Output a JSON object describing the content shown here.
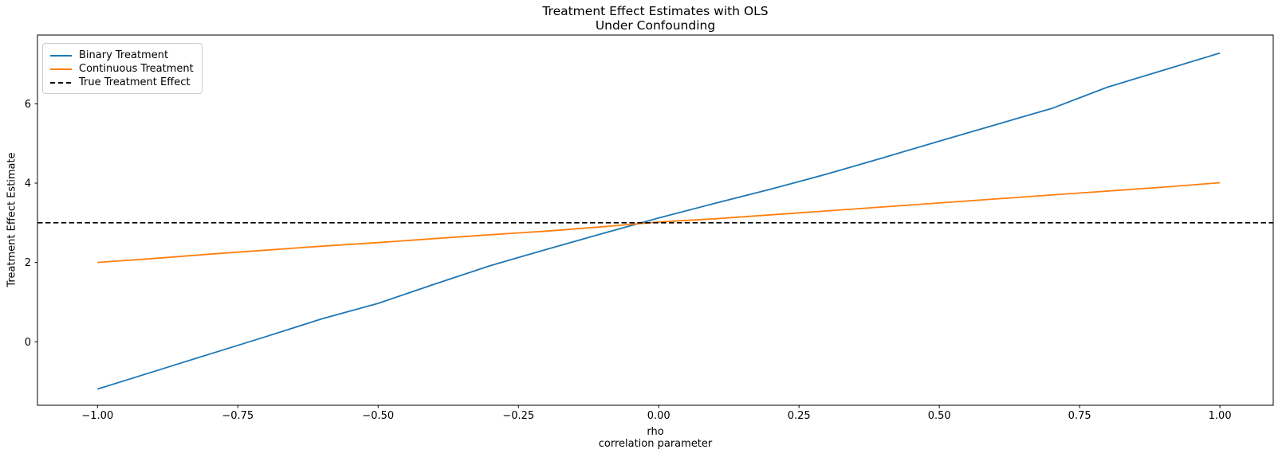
{
  "chart_data": {
    "type": "line",
    "title_line1": "Treatment Effect Estimates with OLS",
    "title_line2": "Under Confounding",
    "xlabel_line1": "rho",
    "xlabel_line2": "correlation parameter",
    "ylabel": "Treatment Effect Estimate",
    "xlim": [
      -1.107,
      1.095
    ],
    "ylim": [
      -1.6,
      7.733
    ],
    "grid": false,
    "legend_position": "upper left",
    "background_color": "#ffffff",
    "x": [
      -1.0,
      -0.9,
      -0.8,
      -0.7,
      -0.6,
      -0.5,
      -0.4,
      -0.3,
      -0.2,
      -0.1,
      0.0,
      0.1,
      0.2,
      0.3,
      0.4,
      0.5,
      0.6,
      0.7,
      0.8,
      0.9,
      1.0
    ],
    "series": [
      {
        "name": "Binary Treatment",
        "color": "#1f77b4",
        "line_style": "solid",
        "values": [
          -1.19,
          -0.75,
          -0.31,
          0.13,
          0.58,
          0.97,
          1.45,
          1.92,
          2.33,
          2.73,
          3.12,
          3.49,
          3.85,
          4.23,
          4.64,
          5.06,
          5.47,
          5.88,
          6.42,
          6.85,
          7.28
        ]
      },
      {
        "name": "Continuous Treatment",
        "color": "#ff7f0e",
        "line_style": "solid",
        "values": [
          2.0,
          2.1,
          2.21,
          2.31,
          2.41,
          2.5,
          2.6,
          2.7,
          2.79,
          2.9,
          3.02,
          3.1,
          3.2,
          3.3,
          3.4,
          3.5,
          3.6,
          3.7,
          3.8,
          3.9,
          4.01
        ]
      },
      {
        "name": "True Treatment Effect",
        "color": "#000000",
        "line_style": "dashed",
        "hline": true,
        "value": 3.0
      }
    ],
    "xticks": {
      "values": [
        -1.0,
        -0.75,
        -0.5,
        -0.25,
        0.0,
        0.25,
        0.5,
        0.75,
        1.0
      ],
      "labels": [
        "−1.00",
        "−0.75",
        "−0.50",
        "−0.25",
        "0.00",
        "0.25",
        "0.50",
        "0.75",
        "1.00"
      ]
    },
    "yticks": {
      "values": [
        0,
        2,
        4,
        6
      ],
      "labels": [
        "0",
        "2",
        "4",
        "6"
      ]
    }
  }
}
